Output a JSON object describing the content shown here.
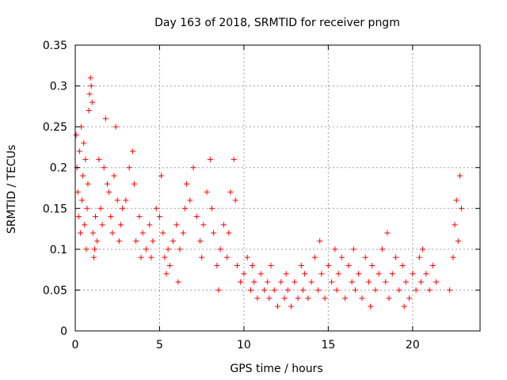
{
  "chart_data": {
    "type": "scatter",
    "title": "Day 163 of 2018, SRMTID for receiver pngm",
    "xlabel": "GPS time / hours",
    "ylabel": "SRMTID / TECUs",
    "xlim": [
      0,
      24
    ],
    "ylim": [
      0,
      0.35
    ],
    "x_ticks": [
      0,
      5,
      10,
      15,
      20
    ],
    "x_tick_labels": [
      "0",
      "5",
      "10",
      "15",
      "20"
    ],
    "y_ticks": [
      0,
      0.05,
      0.1,
      0.15,
      0.2,
      0.25,
      0.3,
      0.35
    ],
    "y_tick_labels": [
      "0",
      "0.05",
      "0.1",
      "0.15",
      "0.2",
      "0.25",
      "0.3",
      "0.35"
    ],
    "grid": true,
    "marker": "+",
    "color": "#ff0000",
    "series": [
      {
        "name": "SRMTID",
        "points": [
          [
            0.05,
            0.24
          ],
          [
            0.1,
            0.2
          ],
          [
            0.15,
            0.17
          ],
          [
            0.2,
            0.14
          ],
          [
            0.25,
            0.22
          ],
          [
            0.3,
            0.12
          ],
          [
            0.35,
            0.25
          ],
          [
            0.4,
            0.16
          ],
          [
            0.45,
            0.19
          ],
          [
            0.5,
            0.23
          ],
          [
            0.55,
            0.13
          ],
          [
            0.6,
            0.21
          ],
          [
            0.65,
            0.1
          ],
          [
            0.7,
            0.15
          ],
          [
            0.75,
            0.18
          ],
          [
            0.8,
            0.27
          ],
          [
            0.85,
            0.29
          ],
          [
            0.9,
            0.31
          ],
          [
            0.95,
            0.3
          ],
          [
            1.0,
            0.28
          ],
          [
            1.05,
            0.12
          ],
          [
            1.1,
            0.09
          ],
          [
            1.15,
            0.1
          ],
          [
            1.2,
            0.14
          ],
          [
            1.3,
            0.11
          ],
          [
            1.4,
            0.21
          ],
          [
            1.5,
            0.15
          ],
          [
            1.6,
            0.13
          ],
          [
            1.7,
            0.2
          ],
          [
            1.8,
            0.26
          ],
          [
            1.9,
            0.18
          ],
          [
            2.0,
            0.17
          ],
          [
            2.1,
            0.14
          ],
          [
            2.2,
            0.12
          ],
          [
            2.3,
            0.19
          ],
          [
            2.4,
            0.25
          ],
          [
            2.5,
            0.16
          ],
          [
            2.6,
            0.11
          ],
          [
            2.7,
            0.13
          ],
          [
            2.8,
            0.15
          ],
          [
            3.0,
            0.16
          ],
          [
            3.2,
            0.2
          ],
          [
            3.4,
            0.22
          ],
          [
            3.5,
            0.18
          ],
          [
            3.6,
            0.11
          ],
          [
            3.8,
            0.14
          ],
          [
            3.9,
            0.09
          ],
          [
            4.0,
            0.12
          ],
          [
            4.2,
            0.1
          ],
          [
            4.4,
            0.13
          ],
          [
            4.5,
            0.09
          ],
          [
            4.6,
            0.11
          ],
          [
            4.8,
            0.15
          ],
          [
            5.0,
            0.14
          ],
          [
            5.1,
            0.19
          ],
          [
            5.2,
            0.12
          ],
          [
            5.3,
            0.09
          ],
          [
            5.4,
            0.07
          ],
          [
            5.5,
            0.1
          ],
          [
            5.6,
            0.08
          ],
          [
            5.8,
            0.11
          ],
          [
            6.0,
            0.13
          ],
          [
            6.1,
            0.06
          ],
          [
            6.2,
            0.1
          ],
          [
            6.4,
            0.12
          ],
          [
            6.5,
            0.15
          ],
          [
            6.6,
            0.18
          ],
          [
            6.8,
            0.16
          ],
          [
            7.0,
            0.2
          ],
          [
            7.2,
            0.14
          ],
          [
            7.4,
            0.11
          ],
          [
            7.5,
            0.09
          ],
          [
            7.6,
            0.13
          ],
          [
            7.8,
            0.17
          ],
          [
            8.0,
            0.21
          ],
          [
            8.1,
            0.15
          ],
          [
            8.2,
            0.12
          ],
          [
            8.4,
            0.08
          ],
          [
            8.5,
            0.05
          ],
          [
            8.6,
            0.1
          ],
          [
            8.8,
            0.13
          ],
          [
            9.0,
            0.09
          ],
          [
            9.1,
            0.12
          ],
          [
            9.2,
            0.17
          ],
          [
            9.4,
            0.21
          ],
          [
            9.5,
            0.16
          ],
          [
            9.6,
            0.08
          ],
          [
            9.8,
            0.06
          ],
          [
            10.0,
            0.07
          ],
          [
            10.2,
            0.09
          ],
          [
            10.4,
            0.05
          ],
          [
            10.5,
            0.08
          ],
          [
            10.6,
            0.06
          ],
          [
            10.8,
            0.04
          ],
          [
            11.0,
            0.07
          ],
          [
            11.2,
            0.05
          ],
          [
            11.4,
            0.06
          ],
          [
            11.5,
            0.04
          ],
          [
            11.6,
            0.08
          ],
          [
            11.8,
            0.05
          ],
          [
            12.0,
            0.03
          ],
          [
            12.2,
            0.06
          ],
          [
            12.4,
            0.04
          ],
          [
            12.5,
            0.07
          ],
          [
            12.6,
            0.05
          ],
          [
            12.8,
            0.03
          ],
          [
            13.0,
            0.06
          ],
          [
            13.2,
            0.04
          ],
          [
            13.4,
            0.08
          ],
          [
            13.5,
            0.05
          ],
          [
            13.6,
            0.07
          ],
          [
            13.8,
            0.04
          ],
          [
            14.0,
            0.06
          ],
          [
            14.2,
            0.09
          ],
          [
            14.4,
            0.05
          ],
          [
            14.5,
            0.11
          ],
          [
            14.6,
            0.07
          ],
          [
            14.8,
            0.04
          ],
          [
            15.0,
            0.08
          ],
          [
            15.2,
            0.06
          ],
          [
            15.4,
            0.1
          ],
          [
            15.5,
            0.05
          ],
          [
            15.6,
            0.07
          ],
          [
            15.8,
            0.09
          ],
          [
            16.0,
            0.04
          ],
          [
            16.2,
            0.08
          ],
          [
            16.4,
            0.06
          ],
          [
            16.5,
            0.1
          ],
          [
            16.6,
            0.05
          ],
          [
            16.8,
            0.07
          ],
          [
            17.0,
            0.04
          ],
          [
            17.2,
            0.09
          ],
          [
            17.4,
            0.06
          ],
          [
            17.5,
            0.03
          ],
          [
            17.6,
            0.08
          ],
          [
            17.8,
            0.05
          ],
          [
            18.0,
            0.07
          ],
          [
            18.2,
            0.1
          ],
          [
            18.4,
            0.06
          ],
          [
            18.5,
            0.12
          ],
          [
            18.6,
            0.04
          ],
          [
            18.8,
            0.07
          ],
          [
            19.0,
            0.09
          ],
          [
            19.2,
            0.05
          ],
          [
            19.4,
            0.08
          ],
          [
            19.5,
            0.03
          ],
          [
            19.6,
            0.06
          ],
          [
            19.8,
            0.04
          ],
          [
            20.0,
            0.07
          ],
          [
            20.2,
            0.05
          ],
          [
            20.4,
            0.09
          ],
          [
            20.5,
            0.06
          ],
          [
            20.6,
            0.1
          ],
          [
            20.8,
            0.07
          ],
          [
            21.0,
            0.05
          ],
          [
            21.2,
            0.08
          ],
          [
            21.4,
            0.06
          ],
          [
            22.2,
            0.05
          ],
          [
            22.4,
            0.09
          ],
          [
            22.5,
            0.13
          ],
          [
            22.6,
            0.16
          ],
          [
            22.7,
            0.11
          ],
          [
            22.8,
            0.19
          ],
          [
            22.9,
            0.15
          ]
        ]
      }
    ]
  }
}
